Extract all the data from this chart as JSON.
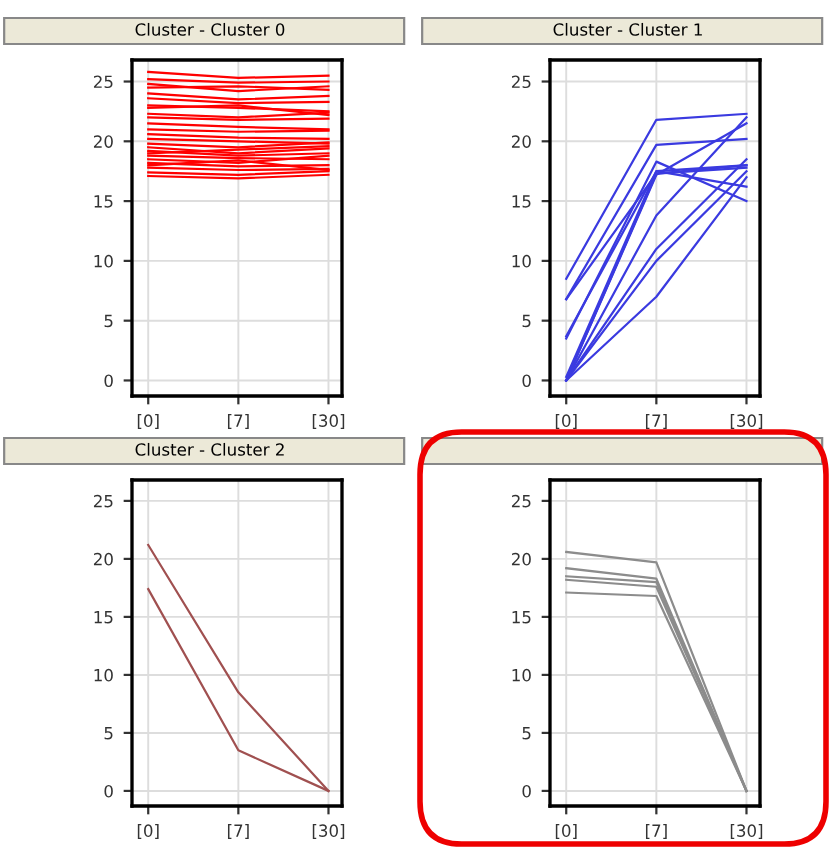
{
  "chart_data": [
    {
      "type": "line",
      "title": "Cluster - Cluster 0",
      "categories": [
        "[0]",
        "[7]",
        "[30]"
      ],
      "ylim": [
        -1.3,
        26.8
      ],
      "yticks": [
        0,
        5,
        10,
        15,
        20,
        25
      ],
      "grid": true,
      "series": [
        {
          "color": "#ff0000",
          "values": [
            25.8,
            25.3,
            25.5
          ]
        },
        {
          "color": "#ff0000",
          "values": [
            25.2,
            24.9,
            25.0
          ]
        },
        {
          "color": "#ff0000",
          "values": [
            24.5,
            24.6,
            24.3
          ]
        },
        {
          "color": "#ff0000",
          "values": [
            24.0,
            23.5,
            23.8
          ]
        },
        {
          "color": "#ff0000",
          "values": [
            23.6,
            23.2,
            23.3
          ]
        },
        {
          "color": "#ff0000",
          "values": [
            23.0,
            22.8,
            22.5
          ]
        },
        {
          "color": "#ff0000",
          "values": [
            22.3,
            22.0,
            22.4
          ]
        },
        {
          "color": "#ff0000",
          "values": [
            22.0,
            21.8,
            21.9
          ]
        },
        {
          "color": "#ff0000",
          "values": [
            21.5,
            21.2,
            21.0
          ]
        },
        {
          "color": "#ff0000",
          "values": [
            21.0,
            20.8,
            20.9
          ]
        },
        {
          "color": "#ff0000",
          "values": [
            20.6,
            20.3,
            20.2
          ]
        },
        {
          "color": "#ff0000",
          "values": [
            20.2,
            20.0,
            19.8
          ]
        },
        {
          "color": "#ff0000",
          "values": [
            19.8,
            19.5,
            19.9
          ]
        },
        {
          "color": "#ff0000",
          "values": [
            19.5,
            19.0,
            19.4
          ]
        },
        {
          "color": "#ff0000",
          "values": [
            19.2,
            18.8,
            19.0
          ]
        },
        {
          "color": "#ff0000",
          "values": [
            18.8,
            18.6,
            18.5
          ]
        },
        {
          "color": "#ff0000",
          "values": [
            18.5,
            18.2,
            18.8
          ]
        },
        {
          "color": "#ff0000",
          "values": [
            18.2,
            17.9,
            18.0
          ]
        },
        {
          "color": "#ff0000",
          "values": [
            17.8,
            17.6,
            17.7
          ]
        },
        {
          "color": "#ff0000",
          "values": [
            17.4,
            17.2,
            17.5
          ]
        },
        {
          "color": "#ff0000",
          "values": [
            17.1,
            16.9,
            17.2
          ]
        },
        {
          "color": "#ff0000",
          "values": [
            22.8,
            23.0,
            22.2
          ]
        },
        {
          "color": "#ff0000",
          "values": [
            24.8,
            24.2,
            24.6
          ]
        },
        {
          "color": "#ff0000",
          "values": [
            19.0,
            19.3,
            19.6
          ]
        },
        {
          "color": "#ff0000",
          "values": [
            18.0,
            18.4,
            17.6
          ]
        }
      ]
    },
    {
      "type": "line",
      "title": "Cluster - Cluster 1",
      "categories": [
        "[0]",
        "[7]",
        "[30]"
      ],
      "ylim": [
        -1.3,
        26.8
      ],
      "yticks": [
        0,
        5,
        10,
        15,
        20,
        25
      ],
      "grid": true,
      "series": [
        {
          "color": "#3a3ae0",
          "values": [
            8.5,
            21.8,
            22.3
          ]
        },
        {
          "color": "#3a3ae0",
          "values": [
            6.8,
            19.7,
            20.2
          ]
        },
        {
          "color": "#3a3ae0",
          "values": [
            6.8,
            17.3,
            17.8
          ]
        },
        {
          "color": "#3a3ae0",
          "values": [
            3.7,
            17.5,
            18.0
          ]
        },
        {
          "color": "#3a3ae0",
          "values": [
            3.5,
            18.3,
            15.0
          ]
        },
        {
          "color": "#3a3ae0",
          "values": [
            0,
            17.2,
            21.5
          ]
        },
        {
          "color": "#3a3ae0",
          "values": [
            0,
            13.8,
            22.0
          ]
        },
        {
          "color": "#3a3ae0",
          "values": [
            0,
            11.0,
            18.5
          ]
        },
        {
          "color": "#3a3ae0",
          "values": [
            0,
            10.0,
            17.5
          ]
        },
        {
          "color": "#3a3ae0",
          "values": [
            0,
            7.0,
            17.0
          ]
        },
        {
          "color": "#3a3ae0",
          "values": [
            0.3,
            17.5,
            16.2
          ]
        },
        {
          "color": "#3a3ae0",
          "values": [
            0,
            17.3,
            18.0
          ]
        }
      ]
    },
    {
      "type": "line",
      "title": "Cluster - Cluster 2",
      "categories": [
        "[0]",
        "[7]",
        "[30]"
      ],
      "ylim": [
        -1.3,
        26.8
      ],
      "yticks": [
        0,
        5,
        10,
        15,
        20,
        25
      ],
      "grid": true,
      "series": [
        {
          "color": "#a05050",
          "values": [
            21.2,
            8.5,
            0
          ]
        },
        {
          "color": "#a05050",
          "values": [
            17.4,
            3.5,
            0
          ]
        }
      ]
    },
    {
      "type": "line",
      "categories": [
        "[0]",
        "[7]",
        "[30]"
      ],
      "ylim": [
        -1.3,
        26.8
      ],
      "yticks": [
        0,
        5,
        10,
        15,
        20,
        25
      ],
      "grid": true,
      "series": [
        {
          "color": "#8c8c8c",
          "values": [
            20.6,
            19.7,
            0
          ]
        },
        {
          "color": "#8c8c8c",
          "values": [
            19.2,
            18.3,
            0
          ]
        },
        {
          "color": "#8c8c8c",
          "values": [
            18.5,
            18.0,
            0
          ]
        },
        {
          "color": "#8c8c8c",
          "values": [
            18.2,
            17.6,
            0
          ]
        },
        {
          "color": "#8c8c8c",
          "values": [
            17.1,
            16.8,
            0
          ]
        }
      ]
    }
  ]
}
